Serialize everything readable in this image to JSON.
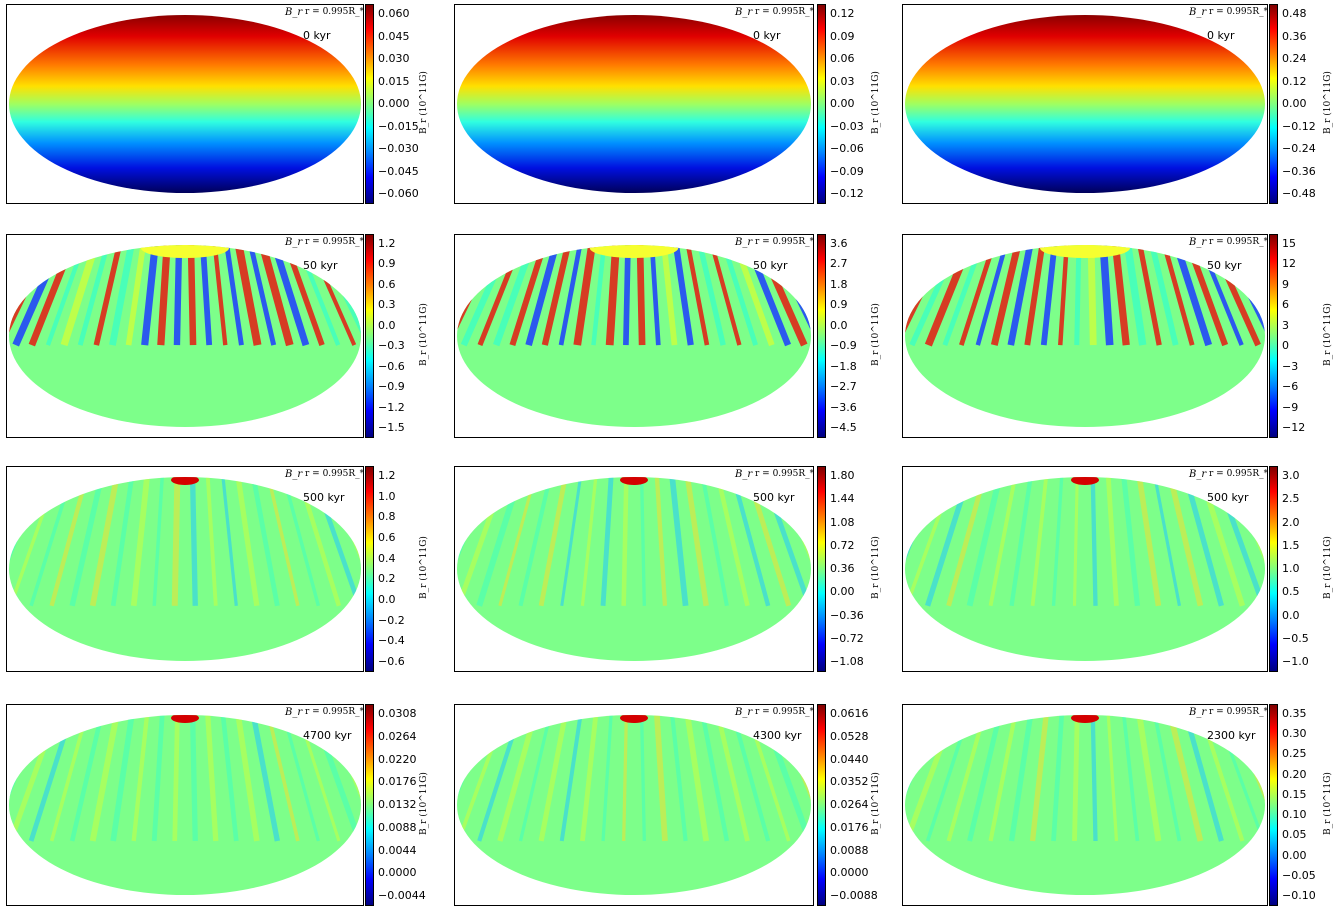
{
  "common": {
    "field_label": "B_r",
    "radius_label": "r = 0.995R_*",
    "colorbar_label": "B_r (10^11G)"
  },
  "panels": [
    {
      "time": "0 kyr",
      "ticks": [
        "0.060",
        "0.045",
        "0.030",
        "0.015",
        "0.000",
        "−0.015",
        "−0.030",
        "−0.045",
        "−0.060"
      ],
      "pattern": "dipole"
    },
    {
      "time": "0 kyr",
      "ticks": [
        "0.12",
        "0.09",
        "0.06",
        "0.03",
        "0.00",
        "−0.03",
        "−0.06",
        "−0.09",
        "−0.12"
      ],
      "pattern": "dipole"
    },
    {
      "time": "0 kyr",
      "ticks": [
        "0.48",
        "0.36",
        "0.24",
        "0.12",
        "0.00",
        "−0.12",
        "−0.24",
        "−0.36",
        "−0.48"
      ],
      "pattern": "dipole"
    },
    {
      "time": "50 kyr",
      "ticks": [
        "1.2",
        "0.9",
        "0.6",
        "0.3",
        "0.0",
        "−0.3",
        "−0.6",
        "−0.9",
        "−1.2",
        "−1.5"
      ],
      "pattern": "stripes"
    },
    {
      "time": "50 kyr",
      "ticks": [
        "3.6",
        "2.7",
        "1.8",
        "0.9",
        "0.0",
        "−0.9",
        "−1.8",
        "−2.7",
        "−3.6",
        "−4.5"
      ],
      "pattern": "stripes"
    },
    {
      "time": "50 kyr",
      "ticks": [
        "15",
        "12",
        "9",
        "6",
        "3",
        "0",
        "−3",
        "−6",
        "−9",
        "−12"
      ],
      "pattern": "stripes"
    },
    {
      "time": "500 kyr",
      "ticks": [
        "1.2",
        "1.0",
        "0.8",
        "0.6",
        "0.4",
        "0.2",
        "0.0",
        "−0.2",
        "−0.4",
        "−0.6"
      ],
      "pattern": "weak"
    },
    {
      "time": "500 kyr",
      "ticks": [
        "1.80",
        "1.44",
        "1.08",
        "0.72",
        "0.36",
        "0.00",
        "−0.36",
        "−0.72",
        "−1.08"
      ],
      "pattern": "weak"
    },
    {
      "time": "500 kyr",
      "ticks": [
        "3.0",
        "2.5",
        "2.0",
        "1.5",
        "1.0",
        "0.5",
        "0.0",
        "−0.5",
        "−1.0"
      ],
      "pattern": "weak"
    },
    {
      "time": "4700 kyr",
      "ticks": [
        "0.0308",
        "0.0264",
        "0.0220",
        "0.0176",
        "0.0132",
        "0.0088",
        "0.0044",
        "0.0000",
        "−0.0044"
      ],
      "pattern": "faint"
    },
    {
      "time": "4300 kyr",
      "ticks": [
        "0.0616",
        "0.0528",
        "0.0440",
        "0.0352",
        "0.0264",
        "0.0176",
        "0.0088",
        "0.0000",
        "−0.0088"
      ],
      "pattern": "faint"
    },
    {
      "time": "2300 kyr",
      "ticks": [
        "0.35",
        "0.30",
        "0.25",
        "0.20",
        "0.15",
        "0.10",
        "0.05",
        "0.00",
        "−0.05",
        "−0.10"
      ],
      "pattern": "faint"
    }
  ]
}
